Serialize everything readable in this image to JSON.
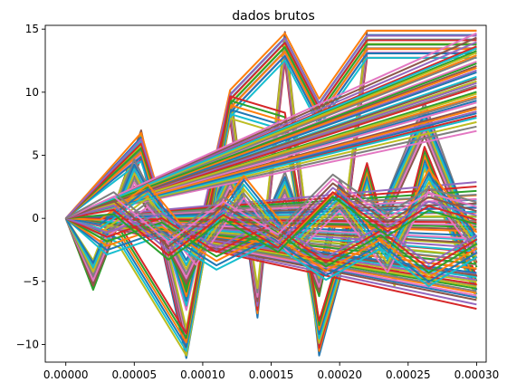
{
  "chart_data": {
    "type": "line",
    "title": "dados brutos",
    "xlabel": "",
    "ylabel": "",
    "xlim": [
      -1.5e-05,
      0.000307
    ],
    "ylim": [
      -11.4,
      15.3
    ],
    "xticks": [
      0.0,
      5e-05,
      0.0001,
      0.00015,
      0.0002,
      0.00025,
      0.0003
    ],
    "xtick_labels": [
      "0.00000",
      "0.00005",
      "0.00010",
      "0.00015",
      "0.00020",
      "0.00025",
      "0.00030"
    ],
    "yticks": [
      -10,
      -5,
      0,
      5,
      10,
      15
    ],
    "ytick_labels": [
      "−10",
      "−5",
      "0",
      "5",
      "10",
      "15"
    ],
    "grid": false,
    "legend": "none",
    "palette": [
      "#1f77b4",
      "#ff7f0e",
      "#2ca02c",
      "#d62728",
      "#9467bd",
      "#8c564b",
      "#e377c2",
      "#7f7f7f",
      "#bcbd22",
      "#17becf"
    ],
    "series_style": "many overlapping colored lines",
    "series": [
      {
        "x": [
          0,
          2e-05,
          5.5e-05,
          8.8e-05,
          0.00012,
          0.00014,
          0.00016,
          0.000185,
          0.0002,
          0.00022,
          0.0003
        ],
        "y": [
          0,
          -4.6,
          6.1,
          -10.2,
          9.2,
          -7.0,
          13.9,
          -10.0,
          -4.0,
          14.0,
          14.0
        ]
      },
      {
        "x": [
          0,
          2e-05,
          5.5e-05,
          8.8e-05,
          0.00012,
          0.00014,
          0.00016,
          0.000185,
          0.0002,
          0.00022,
          0.0003
        ],
        "y": [
          0,
          -4.2,
          5.7,
          -9.6,
          8.6,
          -6.4,
          13.4,
          -9.4,
          -3.6,
          13.6,
          13.6
        ]
      },
      {
        "x": [
          0,
          5.5e-05,
          8.8e-05,
          0.00012,
          0.00016,
          0.000185,
          0.00022,
          0.0003
        ],
        "y": [
          0,
          5.9,
          -6.4,
          9.3,
          13.8,
          8.6,
          14.0,
          14.0
        ]
      },
      {
        "x": [
          0,
          5.5e-05,
          8.8e-05,
          0.00012,
          0.00016,
          0.000185,
          0.00022,
          0.0003
        ],
        "y": [
          0,
          5.4,
          -6.0,
          8.9,
          13.4,
          8.2,
          13.6,
          13.6
        ]
      },
      {
        "x": [
          0,
          2e-05,
          5e-05,
          8.8e-05,
          0.00012,
          0.00014,
          0.00016,
          0.000185,
          0.0002,
          0.00022,
          0.000262,
          0.0003
        ],
        "y": [
          0,
          -4.8,
          3.8,
          -4.6,
          3.5,
          -2.5,
          2.8,
          -5.3,
          2.2,
          -3.0,
          8.3,
          -3.0
        ]
      },
      {
        "x": [
          0,
          2e-05,
          5e-05,
          8.8e-05,
          0.00012,
          0.00014,
          0.00016,
          0.000185,
          0.0002,
          0.00022,
          0.000262,
          0.0003
        ],
        "y": [
          0,
          -4.4,
          3.4,
          -4.2,
          3.1,
          -2.1,
          2.4,
          -4.9,
          1.8,
          -2.6,
          7.4,
          -2.6
        ]
      },
      {
        "x": [
          0,
          4e-05,
          8.8e-05,
          0.00012,
          0.00016,
          0.000185,
          0.00022,
          0.00024,
          0.000262,
          0.0003
        ],
        "y": [
          0,
          -1.5,
          -10.0,
          8.8,
          7.5,
          -9.0,
          3.5,
          -4.5,
          4.8,
          -5.5
        ]
      },
      {
        "x": [
          0,
          0.0003
        ],
        "y": [
          0,
          13.8
        ]
      },
      {
        "x": [
          0,
          0.0003
        ],
        "y": [
          0,
          12.6
        ]
      },
      {
        "x": [
          0,
          0.0003
        ],
        "y": [
          0,
          11.4
        ]
      },
      {
        "x": [
          0,
          0.0003
        ],
        "y": [
          0,
          10.2
        ]
      },
      {
        "x": [
          0,
          0.0003
        ],
        "y": [
          0,
          9.0
        ]
      },
      {
        "x": [
          0,
          0.0003
        ],
        "y": [
          0,
          7.8
        ]
      },
      {
        "x": [
          0,
          0.0003
        ],
        "y": [
          0,
          2.0
        ]
      },
      {
        "x": [
          0,
          0.0003
        ],
        "y": [
          0,
          1.0
        ]
      },
      {
        "x": [
          0,
          0.0003
        ],
        "y": [
          0,
          0.0
        ]
      },
      {
        "x": [
          0,
          0.0003
        ],
        "y": [
          0,
          -1.2
        ]
      },
      {
        "x": [
          0,
          0.0003
        ],
        "y": [
          0,
          -2.5
        ]
      },
      {
        "x": [
          0,
          0.0003
        ],
        "y": [
          0,
          -3.5
        ]
      },
      {
        "x": [
          0,
          0.0003
        ],
        "y": [
          0,
          -4.5
        ]
      },
      {
        "x": [
          0,
          0.0003
        ],
        "y": [
          0,
          -5.4
        ]
      },
      {
        "x": [
          0,
          0.0003
        ],
        "y": [
          0,
          -6.3
        ]
      },
      {
        "x": [
          0,
          2.5e-05,
          6e-05,
          9.5e-05,
          0.00013,
          0.000165,
          0.0002,
          0.000235,
          0.000265,
          0.0003
        ],
        "y": [
          0,
          -1.0,
          1.8,
          -2.8,
          2.5,
          -2.2,
          1.5,
          -3.4,
          3.0,
          -2.0
        ]
      },
      {
        "x": [
          0,
          3e-05,
          7e-05,
          0.00011,
          0.00015,
          0.00019,
          0.00023,
          0.000265,
          0.0003
        ],
        "y": [
          0,
          -2.0,
          -0.5,
          -3.2,
          -1.0,
          -4.0,
          -1.5,
          -4.5,
          -2.2
        ]
      },
      {
        "x": [
          0,
          3.5e-05,
          7.5e-05,
          0.000115,
          0.000155,
          0.000195,
          0.000235,
          0.000265,
          0.0003
        ],
        "y": [
          0,
          1.2,
          -2.4,
          0.8,
          -1.8,
          2.6,
          -0.5,
          1.5,
          0.4
        ]
      }
    ]
  }
}
